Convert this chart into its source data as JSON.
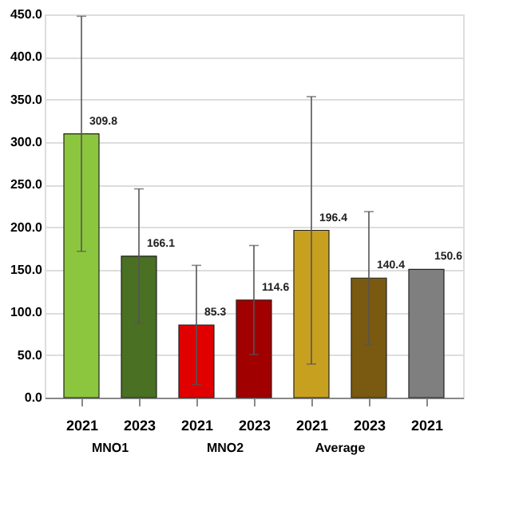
{
  "chart_data": {
    "type": "bar",
    "categories": [
      "2021",
      "2023",
      "2021",
      "2023",
      "2021",
      "2023",
      "2021"
    ],
    "values": [
      309.8,
      166.1,
      85.3,
      114.6,
      196.4,
      140.4,
      150.6
    ],
    "errors": [
      138,
      79,
      70,
      64,
      157,
      78,
      null
    ],
    "colors": [
      "#8cc63e",
      "#4a7023",
      "#e00000",
      "#a00000",
      "#c8a020",
      "#7a5a10",
      "#7f7f7f"
    ],
    "ylim": [
      0,
      450
    ],
    "yticks": [
      {
        "value": 0,
        "label": "0.0"
      },
      {
        "value": 50,
        "label": "50.0"
      },
      {
        "value": 100,
        "label": "100.0"
      },
      {
        "value": 150,
        "label": "150.0"
      },
      {
        "value": 200,
        "label": "200.0"
      },
      {
        "value": 250,
        "label": "250.0"
      },
      {
        "value": 300,
        "label": "300.0"
      },
      {
        "value": 350,
        "label": "350.0"
      },
      {
        "value": 400,
        "label": "400.0"
      },
      {
        "value": 450,
        "label": "450.0"
      }
    ],
    "annotations": [
      "MNO1",
      "MNO2",
      "Average"
    ],
    "data_labels": true,
    "grid": "y"
  }
}
